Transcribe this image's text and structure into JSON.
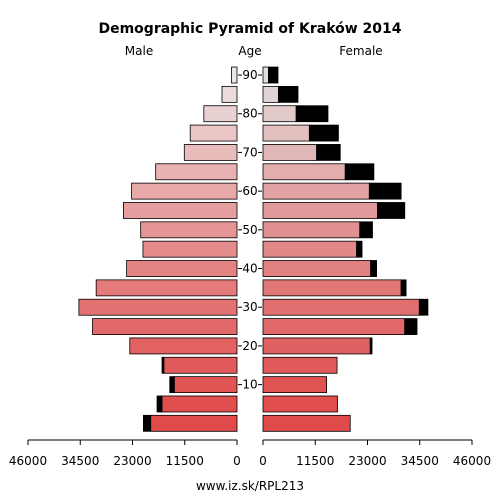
{
  "chart_data": {
    "type": "bar",
    "orientation": "horizontal",
    "title": "Demographic Pyramid of Kraków 2014",
    "left_label": "Male",
    "center_label": "Age",
    "right_label": "Female",
    "source": "www.iz.sk/RPL213",
    "xlim": [
      0,
      46000
    ],
    "x_ticks": [
      "46000",
      "34500",
      "23000",
      "11500",
      "0",
      "0",
      "11500",
      "23000",
      "34500",
      "46000"
    ],
    "age_ticks": [
      "10",
      "20",
      "30",
      "40",
      "50",
      "60",
      "70",
      "80",
      "90"
    ],
    "age_groups": [
      "0-4",
      "5-9",
      "10-14",
      "15-19",
      "20-24",
      "25-29",
      "30-34",
      "35-39",
      "40-44",
      "45-49",
      "50-54",
      "55-59",
      "60-64",
      "65-69",
      "70-74",
      "75-79",
      "80-84",
      "85-89",
      "90+"
    ],
    "series": [
      {
        "name": "Male",
        "values": [
          19000,
          16500,
          13800,
          16100,
          23600,
          31800,
          34800,
          31000,
          24300,
          20700,
          21200,
          25000,
          23200,
          17900,
          11600,
          10300,
          7300,
          3300,
          1200
        ],
        "overflow": [
          1600,
          1100,
          1000,
          400,
          0,
          0,
          0,
          0,
          0,
          0,
          0,
          0,
          0,
          0,
          0,
          0,
          0,
          0,
          0
        ]
      },
      {
        "name": "Female",
        "values": [
          19200,
          16400,
          14000,
          16300,
          23600,
          31200,
          34400,
          30400,
          23700,
          20600,
          21300,
          25200,
          23400,
          18100,
          11800,
          10200,
          7300,
          3400,
          1200
        ],
        "overflow": [
          0,
          0,
          0,
          0,
          400,
          2700,
          1900,
          1100,
          1300,
          1200,
          2800,
          6000,
          7000,
          6300,
          5200,
          6400,
          7000,
          4300,
          2100
        ]
      }
    ],
    "colors": {
      "male_young": "#e04a4a",
      "male_old": "#ece6e6",
      "female_young": "#e04a4a",
      "female_old": "#e2dede",
      "overflow": "#000000"
    }
  }
}
